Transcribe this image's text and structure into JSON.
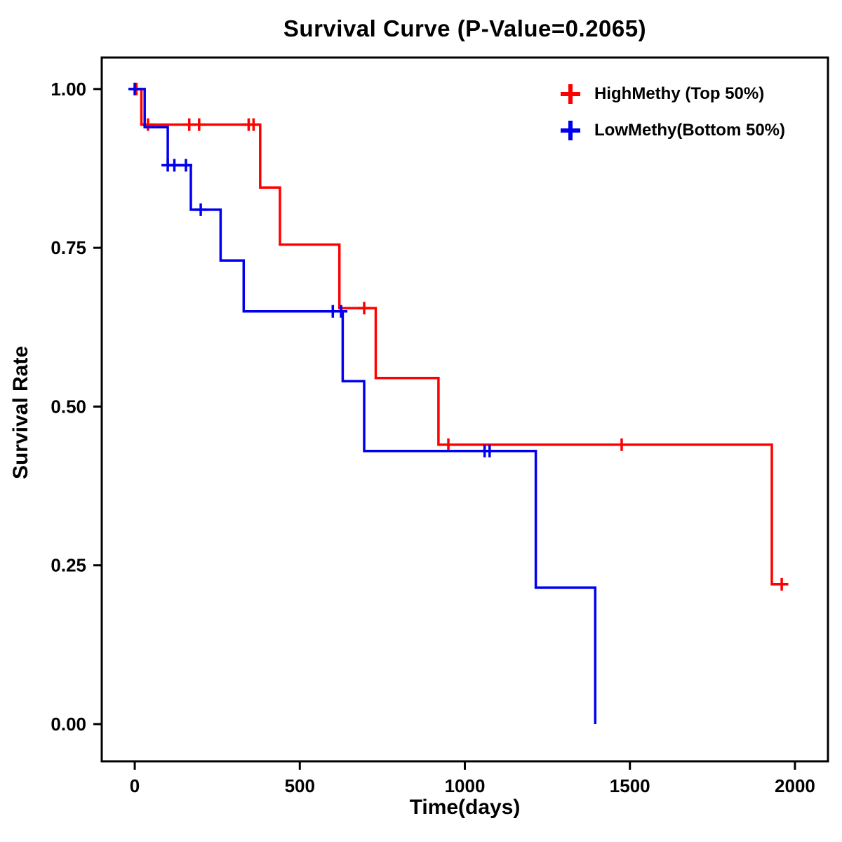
{
  "chart_data": {
    "type": "line",
    "subtype": "kaplan-meier-step-survival",
    "title": "Survival Curve (P-Value=0.2065)",
    "p_value": "0.2065",
    "xlabel": "Time(days)",
    "ylabel": "Survival Rate",
    "x_ticks": [
      0,
      500,
      1000,
      1500,
      2000
    ],
    "y_ticks": [
      "0.00",
      "0.25",
      "0.50",
      "0.75",
      "1.00"
    ],
    "xlim": [
      -100,
      2100
    ],
    "ylim": [
      -0.0586,
      1.0496
    ],
    "grid": false,
    "legend_position": "top-right-inside",
    "series": [
      {
        "name": "HighMethy (Top 50%)",
        "color": "#FF0000",
        "steps": [
          [
            0,
            1.0
          ],
          [
            20,
            0.944
          ],
          [
            380,
            0.845
          ],
          [
            440,
            0.755
          ],
          [
            620,
            0.655
          ],
          [
            730,
            0.545
          ],
          [
            920,
            0.44
          ],
          [
            1930,
            0.22
          ]
        ],
        "end_time": 1980,
        "censor_marks": [
          [
            5,
            1.0
          ],
          [
            40,
            0.944
          ],
          [
            165,
            0.944
          ],
          [
            195,
            0.944
          ],
          [
            345,
            0.944
          ],
          [
            360,
            0.944
          ],
          [
            695,
            0.655
          ],
          [
            950,
            0.44
          ],
          [
            1475,
            0.44
          ],
          [
            1960,
            0.22
          ]
        ]
      },
      {
        "name": "LowMethy(Bottom 50%)",
        "color": "#0000EE",
        "steps": [
          [
            0,
            1.0
          ],
          [
            30,
            0.94
          ],
          [
            100,
            0.88
          ],
          [
            170,
            0.81
          ],
          [
            260,
            0.73
          ],
          [
            330,
            0.65
          ],
          [
            630,
            0.54
          ],
          [
            695,
            0.43
          ],
          [
            1215,
            0.215
          ],
          [
            1395,
            0.0
          ]
        ],
        "end_time": 1395,
        "censor_marks": [
          [
            0,
            1.0
          ],
          [
            100,
            0.88
          ],
          [
            120,
            0.88
          ],
          [
            155,
            0.88
          ],
          [
            200,
            0.81
          ],
          [
            600,
            0.65
          ],
          [
            625,
            0.65
          ],
          [
            1060,
            0.43
          ],
          [
            1075,
            0.43
          ]
        ]
      }
    ]
  }
}
